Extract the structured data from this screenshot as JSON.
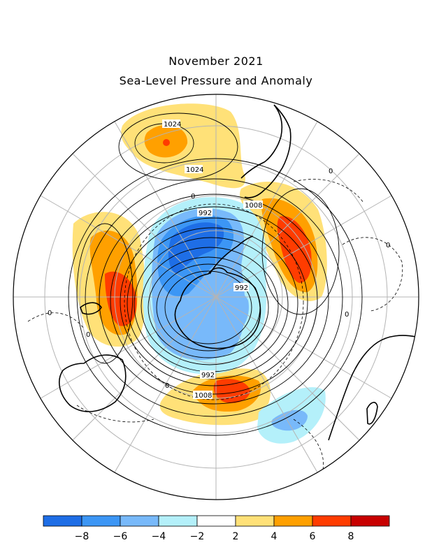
{
  "title": "November 2021",
  "subtitle": "Sea-Level Pressure and Anomaly",
  "contour_labels": {
    "high_1024_a": "1024",
    "high_1024_b": "1024",
    "low_992_a": "992",
    "low_992_b": "992",
    "low_992_c": "992",
    "mid_1008_a": "1008",
    "mid_1008_b": "1008",
    "zero_a": "0",
    "zero_b": "0",
    "zero_c": "0",
    "zero_d": "0",
    "zero_e": "0",
    "zero_f": "0",
    "zero_g": "0"
  },
  "colorbar": {
    "colors": [
      "#1e6ee6",
      "#3c96f5",
      "#78b9fa",
      "#b4f0fa",
      "#ffffff",
      "#ffe178",
      "#ffa000",
      "#ff3c00",
      "#c80000"
    ],
    "tick_labels": [
      "-8",
      "-6",
      "-4",
      "-2",
      "2",
      "4",
      "6",
      "8"
    ]
  }
}
